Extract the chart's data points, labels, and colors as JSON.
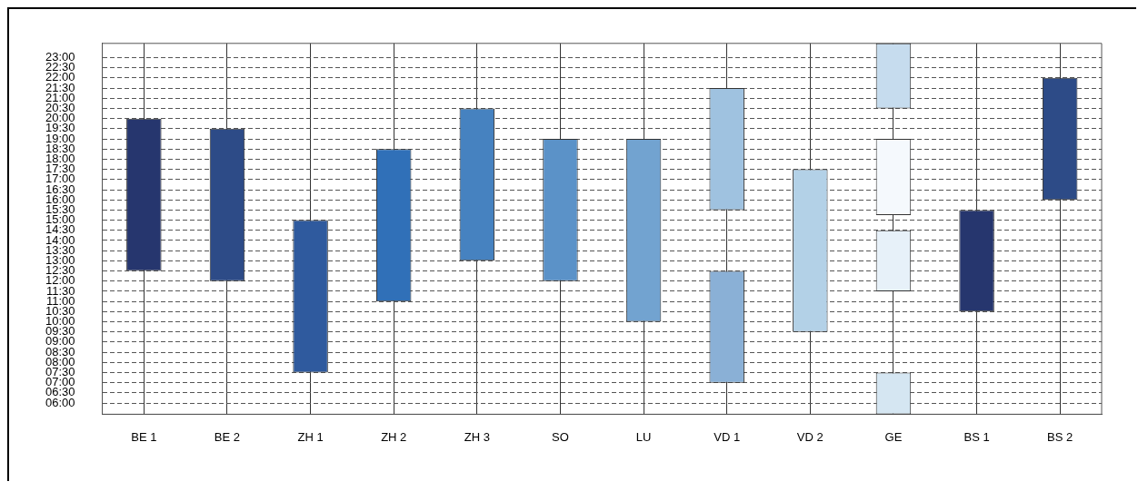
{
  "chart_data": {
    "type": "bar",
    "categories": [
      "BE 1",
      "BE 2",
      "ZH 1",
      "ZH 2",
      "ZH 3",
      "SO",
      "LU",
      "VD 1",
      "VD 2",
      "GE",
      "BS 1",
      "BS 2"
    ],
    "series": [
      {
        "base": [
          12.5,
          12,
          7.5,
          11,
          13,
          12,
          10,
          15.5,
          9.5,
          20.5,
          10.5,
          16
        ],
        "values": [
          7.5,
          7.5,
          7.5,
          7.5,
          7.5,
          7,
          9,
          6,
          8,
          3.2,
          5,
          6
        ],
        "colors": [
          "#26366e",
          "#2d4b87",
          "#2f5a9e",
          "#3070b8",
          "#4682c0",
          "#5b92c8",
          "#72a3d0",
          "#9fc2e0",
          "#b3d1e7",
          "#c6dcee",
          "#26366e",
          "#2d4b87"
        ]
      },
      {
        "base": [
          null,
          null,
          null,
          null,
          null,
          null,
          null,
          7,
          null,
          15.25,
          null,
          null
        ],
        "values": [
          null,
          null,
          null,
          null,
          null,
          null,
          null,
          5.5,
          null,
          3.75,
          null,
          null
        ],
        "colors": [
          "#8ab0d6",
          "#8ab0d6",
          "#8ab0d6",
          "#8ab0d6",
          "#8ab0d6",
          "#8ab0d6",
          "#8ab0d6",
          "#8ab0d6",
          "#8ab0d6",
          "#f5f9fd",
          "#8ab0d6",
          "#8ab0d6"
        ]
      },
      {
        "base": [
          null,
          null,
          null,
          null,
          null,
          null,
          null,
          null,
          null,
          11.5,
          null,
          null
        ],
        "values": [
          null,
          null,
          null,
          null,
          null,
          null,
          null,
          null,
          null,
          3,
          null,
          null
        ],
        "colors": [
          "#e7f1f9",
          "#e7f1f9",
          "#e7f1f9",
          "#e7f1f9",
          "#e7f1f9",
          "#e7f1f9",
          "#e7f1f9",
          "#e7f1f9",
          "#e7f1f9",
          "#e7f1f9",
          "#e7f1f9",
          "#e7f1f9"
        ]
      },
      {
        "base": [
          null,
          null,
          null,
          null,
          null,
          null,
          null,
          null,
          null,
          5.45,
          null,
          null
        ],
        "values": [
          null,
          null,
          null,
          null,
          null,
          null,
          null,
          null,
          null,
          2.05,
          null,
          null
        ],
        "colors": [
          "#d5e6f2",
          "#d5e6f2",
          "#d5e6f2",
          "#d5e6f2",
          "#d5e6f2",
          "#d5e6f2",
          "#d5e6f2",
          "#d5e6f2",
          "#d5e6f2",
          "#d5e6f2",
          "#d5e6f2",
          "#d5e6f2"
        ]
      }
    ],
    "ylim": [
      5.45,
      23.7
    ],
    "yticks": [
      {
        "value": 6,
        "label": "06:00"
      },
      {
        "value": 6.5,
        "label": "06:30"
      },
      {
        "value": 7,
        "label": "07:00"
      },
      {
        "value": 7.5,
        "label": "07:30"
      },
      {
        "value": 8,
        "label": "08:00"
      },
      {
        "value": 8.5,
        "label": "08:30"
      },
      {
        "value": 9,
        "label": "09:00"
      },
      {
        "value": 9.5,
        "label": "09:30"
      },
      {
        "value": 10,
        "label": "10:00"
      },
      {
        "value": 10.5,
        "label": "10:30"
      },
      {
        "value": 11,
        "label": "11:00"
      },
      {
        "value": 11.5,
        "label": "11:30"
      },
      {
        "value": 12,
        "label": "12:00"
      },
      {
        "value": 12.5,
        "label": "12:30"
      },
      {
        "value": 13,
        "label": "13:00"
      },
      {
        "value": 13.5,
        "label": "13:30"
      },
      {
        "value": 14,
        "label": "14:00"
      },
      {
        "value": 14.5,
        "label": "14:30"
      },
      {
        "value": 15,
        "label": "15:00"
      },
      {
        "value": 15.5,
        "label": "15:30"
      },
      {
        "value": 16,
        "label": "16:00"
      },
      {
        "value": 16.5,
        "label": "16:30"
      },
      {
        "value": 17,
        "label": "17:00"
      },
      {
        "value": 17.5,
        "label": "17:30"
      },
      {
        "value": 18,
        "label": "18:00"
      },
      {
        "value": 18.5,
        "label": "18:30"
      },
      {
        "value": 19,
        "label": "19:00"
      },
      {
        "value": 19.5,
        "label": "19:30"
      },
      {
        "value": 20,
        "label": "20:00"
      },
      {
        "value": 20.5,
        "label": "20:30"
      },
      {
        "value": 21,
        "label": "21:00"
      },
      {
        "value": 21.5,
        "label": "21:30"
      },
      {
        "value": 22,
        "label": "22:00"
      },
      {
        "value": 22.5,
        "label": "22:30"
      },
      {
        "value": 23,
        "label": "23:00"
      }
    ],
    "grid": true
  }
}
